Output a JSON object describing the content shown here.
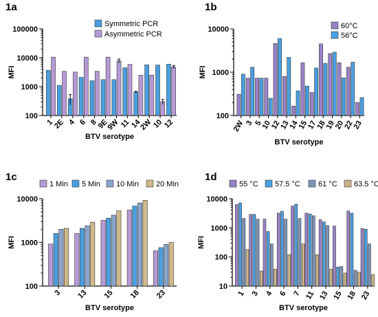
{
  "figure": {
    "width": 550,
    "height": 461
  },
  "chart_data": [
    {
      "panel": "1a",
      "type": "bar",
      "ylabel": "MFI",
      "xlabel": "BTV serotype",
      "yscale": "log",
      "ylim": [
        100,
        100000
      ],
      "yticks": [
        "100",
        "1000",
        "10000",
        "100000"
      ],
      "categories": [
        "1",
        "2E",
        "4",
        "6",
        "8",
        "9E",
        "9W",
        "11",
        "14",
        "2W",
        "10",
        "12"
      ],
      "legend_position": "top-right",
      "series": [
        {
          "name": "Symmetric PCR",
          "color": "#4a9fe0",
          "values": [
            3700,
            1100,
            380,
            2100,
            1600,
            1750,
            1750,
            4500,
            650,
            5700,
            5600,
            6000
          ],
          "errors": [
            0,
            0,
            150,
            0,
            0,
            0,
            0,
            0,
            40,
            0,
            0,
            0
          ]
        },
        {
          "name": "Asymmetric PCR",
          "color": "#b69ad6",
          "values": [
            10500,
            3400,
            3200,
            10500,
            3400,
            10500,
            7800,
            5900,
            2500,
            2500,
            300,
            4800
          ],
          "errors": [
            0,
            0,
            0,
            0,
            0,
            0,
            1200,
            0,
            0,
            0,
            60,
            600
          ]
        }
      ]
    },
    {
      "panel": "1b",
      "type": "bar",
      "ylabel": "MFI",
      "xlabel": "BTV serotype",
      "yscale": "log",
      "ylim": [
        100,
        10000
      ],
      "yticks": [
        "100",
        "1000",
        "10000"
      ],
      "categories": [
        "2W",
        "3",
        "5",
        "10",
        "12",
        "13",
        "14",
        "15",
        "17",
        "18",
        "19",
        "20",
        "22",
        "23"
      ],
      "legend_position": "top-right",
      "series": [
        {
          "name": "60°C",
          "color": "#9a82c8",
          "values": [
            310,
            730,
            730,
            730,
            4600,
            800,
            165,
            1650,
            340,
            4500,
            2700,
            1650,
            1300,
            200
          ]
        },
        {
          "name": "56°C",
          "color": "#4a9fe0",
          "values": [
            900,
            1300,
            730,
            250,
            6000,
            2200,
            370,
            480,
            1250,
            1600,
            2900,
            740,
            1700,
            260
          ]
        }
      ]
    },
    {
      "panel": "1c",
      "type": "bar",
      "ylabel": "MFI",
      "xlabel": "BTV serotype",
      "yscale": "log",
      "ylim": [
        100,
        10000
      ],
      "yticks": [
        "100",
        "1000",
        "10000"
      ],
      "categories": [
        "3",
        "13",
        "15",
        "18",
        "23"
      ],
      "legend_position": "top",
      "series": [
        {
          "name": "1 Min",
          "color": "#b69ad6",
          "values": [
            920,
            1600,
            3200,
            5500,
            640
          ]
        },
        {
          "name": "5 Min",
          "color": "#4a9fe0",
          "values": [
            1600,
            2100,
            3600,
            6800,
            760
          ]
        },
        {
          "name": "10 Min",
          "color": "#8aa5cc",
          "values": [
            2000,
            2400,
            4200,
            8000,
            900
          ]
        },
        {
          "name": "20 Min",
          "color": "#d0b98a",
          "values": [
            2100,
            2900,
            5300,
            9200,
            1000
          ]
        }
      ]
    },
    {
      "panel": "1d",
      "type": "bar",
      "ylabel": "MFI",
      "xlabel": "BTV serotype",
      "yscale": "log",
      "ylim": [
        10,
        10000
      ],
      "yticks": [
        "10",
        "100",
        "1000",
        "10000"
      ],
      "categories": [
        "1",
        "3",
        "4",
        "6",
        "7",
        "11",
        "13",
        "15",
        "18",
        "23"
      ],
      "legend_position": "top",
      "series": [
        {
          "name": "55 °C",
          "color": "#9a82c8",
          "values": [
            6300,
            2900,
            2000,
            3200,
            5600,
            3200,
            1900,
            1150,
            3800,
            950
          ]
        },
        {
          "name": "57.5 °C",
          "color": "#4a9fe0",
          "values": [
            7200,
            2900,
            750,
            3700,
            6500,
            3000,
            1600,
            45,
            3200,
            900
          ]
        },
        {
          "name": "61 °C",
          "color": "#7f93b8",
          "values": [
            2100,
            2000,
            280,
            2000,
            2100,
            2600,
            1200,
            47,
            35,
            280
          ]
        },
        {
          "name": "63.5 °C",
          "color": "#c9b48a",
          "values": [
            180,
            33,
            38,
            120,
            280,
            120,
            38,
            28,
            30,
            25
          ]
        }
      ]
    }
  ]
}
